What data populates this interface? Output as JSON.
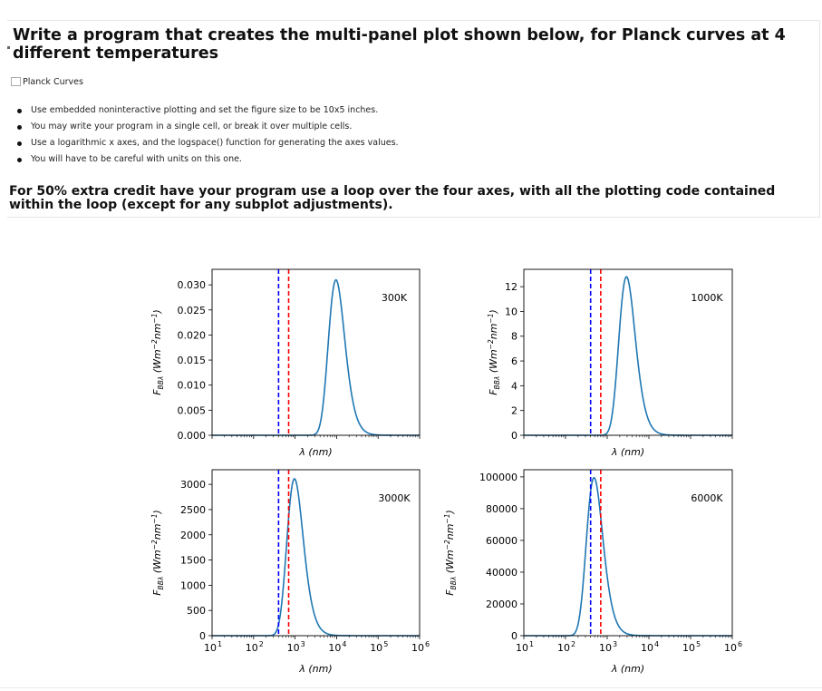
{
  "cell": {
    "heading": "Write a program that creates the multi-panel plot shown below, for Planck curves at 4 different temperatures",
    "image_alt": "Planck Curves",
    "bullets": [
      "Use embedded noninteractive plotting and set the figure size to be 10x5 inches.",
      "You may write your program in a single cell, or break it over multiple cells.",
      "Use a logarithmic x axes, and the logspace() function for generating the axes values.",
      "You will have to be careful with units on this one."
    ],
    "extra_credit": "For 50% extra credit have your program use a loop over the four axes, with all the plotting code contained within the loop (except for any subplot adjustments)."
  },
  "colors": {
    "curve": "#1f77b4",
    "blue_line": "#0000ff",
    "red_line": "#ff0000",
    "axes": "#000000"
  },
  "chart_data": [
    {
      "type": "line",
      "title": "",
      "annotation": "300K",
      "temperature_K": 300,
      "xlabel": "λ (nm)",
      "ylabel": "F_BBλ (W m⁻² nm⁻¹)",
      "xscale": "log",
      "xlim": [
        10,
        1000000
      ],
      "ylim": [
        0,
        0.0331
      ],
      "yticks": [
        "0.000",
        "0.005",
        "0.010",
        "0.015",
        "0.020",
        "0.025",
        "0.030"
      ],
      "ytick_values": [
        0,
        0.005,
        0.01,
        0.015,
        0.02,
        0.025,
        0.03
      ],
      "peak_x_nm": 9659,
      "peak_y": 0.031,
      "vlines": [
        {
          "x": 400,
          "color": "blue",
          "style": "dashed"
        },
        {
          "x": 700,
          "color": "red",
          "style": "dashed"
        }
      ],
      "show_xticklabels": false
    },
    {
      "type": "line",
      "title": "",
      "annotation": "1000K",
      "temperature_K": 1000,
      "xlabel": "λ (nm)",
      "ylabel": "F_BBλ (W m⁻² nm⁻¹)",
      "xscale": "log",
      "xlim": [
        10,
        1000000
      ],
      "ylim": [
        0,
        13.4
      ],
      "yticks": [
        "0",
        "2",
        "4",
        "6",
        "8",
        "10",
        "12"
      ],
      "ytick_values": [
        0,
        2,
        4,
        6,
        8,
        10,
        12
      ],
      "peak_x_nm": 2898,
      "peak_y": 12.8,
      "vlines": [
        {
          "x": 400,
          "color": "blue",
          "style": "dashed"
        },
        {
          "x": 700,
          "color": "red",
          "style": "dashed"
        }
      ],
      "show_xticklabels": false
    },
    {
      "type": "line",
      "title": "",
      "annotation": "3000K",
      "temperature_K": 3000,
      "xlabel": "λ (nm)",
      "ylabel": "F_BBλ (W m⁻² nm⁻¹)",
      "xscale": "log",
      "xlim": [
        10,
        1000000
      ],
      "ylim": [
        0,
        3290
      ],
      "yticks": [
        "0",
        "500",
        "1000",
        "1500",
        "2000",
        "2500",
        "3000"
      ],
      "ytick_values": [
        0,
        500,
        1000,
        1500,
        2000,
        2500,
        3000
      ],
      "peak_x_nm": 966,
      "peak_y": 3110,
      "vlines": [
        {
          "x": 400,
          "color": "blue",
          "style": "dashed"
        },
        {
          "x": 700,
          "color": "red",
          "style": "dashed"
        }
      ],
      "show_xticklabels": true
    },
    {
      "type": "line",
      "title": "",
      "annotation": "6000K",
      "temperature_K": 6000,
      "xlabel": "λ (nm)",
      "ylabel": "F_BBλ (W m⁻² nm⁻¹)",
      "xscale": "log",
      "xlim": [
        10,
        1000000
      ],
      "ylim": [
        0,
        104500
      ],
      "yticks": [
        "0",
        "20000",
        "40000",
        "60000",
        "80000",
        "100000"
      ],
      "ytick_values": [
        0,
        20000,
        40000,
        60000,
        80000,
        100000
      ],
      "peak_x_nm": 483,
      "peak_y": 99500,
      "vlines": [
        {
          "x": 400,
          "color": "blue",
          "style": "dashed"
        },
        {
          "x": 700,
          "color": "red",
          "style": "dashed"
        }
      ],
      "show_xticklabels": true
    }
  ],
  "x_tick_labels": [
    {
      "base": "10",
      "exp": "1"
    },
    {
      "base": "10",
      "exp": "2"
    },
    {
      "base": "10",
      "exp": "3"
    },
    {
      "base": "10",
      "exp": "4"
    },
    {
      "base": "10",
      "exp": "5"
    },
    {
      "base": "10",
      "exp": "6"
    }
  ],
  "y_label_parts": {
    "F": "F",
    "sub": "BBλ",
    "text": " (Wm",
    "e1": "−2",
    "mid": "nm",
    "e2": "−1",
    "end": ")"
  }
}
